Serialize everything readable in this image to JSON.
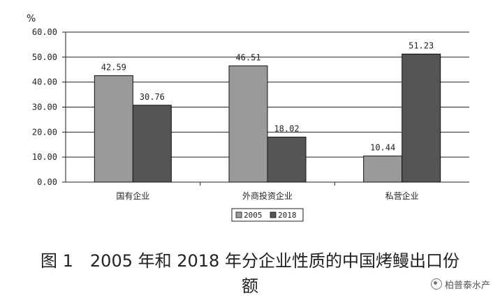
{
  "chart_data": {
    "type": "bar",
    "title": "",
    "ylabel": "%",
    "ylim": [
      0,
      60
    ],
    "yticks": [
      "0.00",
      "10.00",
      "20.00",
      "30.00",
      "40.00",
      "50.00",
      "60.00"
    ],
    "categories": [
      "国有企业",
      "外商投资企业",
      "私营企业"
    ],
    "series": [
      {
        "name": "2005",
        "values": [
          42.59,
          46.51,
          10.44
        ],
        "labels": [
          "42.59",
          "46.51",
          "10.44"
        ],
        "color": "#9a9a9a"
      },
      {
        "name": "2018",
        "values": [
          30.76,
          18.02,
          51.23
        ],
        "labels": [
          "30.76",
          "18.02",
          "51.23"
        ],
        "color": "#555555"
      }
    ],
    "grid": true,
    "legend": "bottom"
  },
  "caption": {
    "line1": "图 1　2005 年和 2018 年分企业性质的中国烤鳗出口份",
    "line2": "额"
  },
  "watermark": "柏普泰水产"
}
